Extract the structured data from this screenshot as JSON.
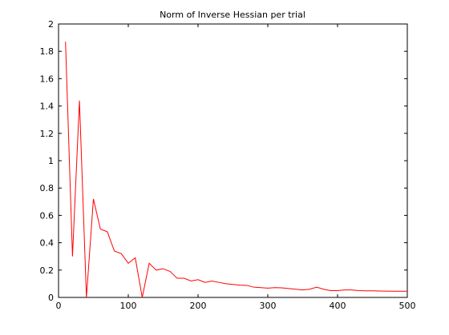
{
  "chart_data": {
    "type": "line",
    "title": "Norm of Inverse Hessian per trial",
    "xlabel": "",
    "ylabel": "",
    "xlim": [
      0,
      500
    ],
    "ylim": [
      0,
      2
    ],
    "x_ticks": [
      "0",
      "100",
      "200",
      "300",
      "400",
      "500"
    ],
    "y_ticks": [
      "0",
      "0.2",
      "0.4",
      "0.6",
      "0.8",
      "1",
      "1.2",
      "1.4",
      "1.6",
      "1.8",
      "2"
    ],
    "grid": false,
    "series": [
      {
        "color": "#ff0000",
        "x": [
          10,
          20,
          30,
          40,
          50,
          60,
          70,
          80,
          90,
          100,
          110,
          120,
          130,
          140,
          150,
          160,
          170,
          180,
          190,
          200,
          210,
          220,
          230,
          240,
          250,
          260,
          270,
          280,
          290,
          300,
          310,
          320,
          330,
          340,
          350,
          360,
          370,
          380,
          390,
          400,
          410,
          420,
          430,
          440,
          450,
          460,
          470,
          480,
          490,
          500
        ],
        "y": [
          1.87,
          0.3,
          1.44,
          0.0,
          0.72,
          0.5,
          0.48,
          0.34,
          0.32,
          0.25,
          0.29,
          0.0,
          0.25,
          0.2,
          0.21,
          0.19,
          0.14,
          0.14,
          0.12,
          0.13,
          0.11,
          0.12,
          0.11,
          0.1,
          0.095,
          0.09,
          0.088,
          0.075,
          0.072,
          0.068,
          0.072,
          0.07,
          0.065,
          0.06,
          0.055,
          0.06,
          0.075,
          0.06,
          0.05,
          0.05,
          0.055,
          0.055,
          0.05,
          0.048,
          0.048,
          0.047,
          0.046,
          0.045,
          0.045,
          0.045
        ]
      }
    ]
  }
}
